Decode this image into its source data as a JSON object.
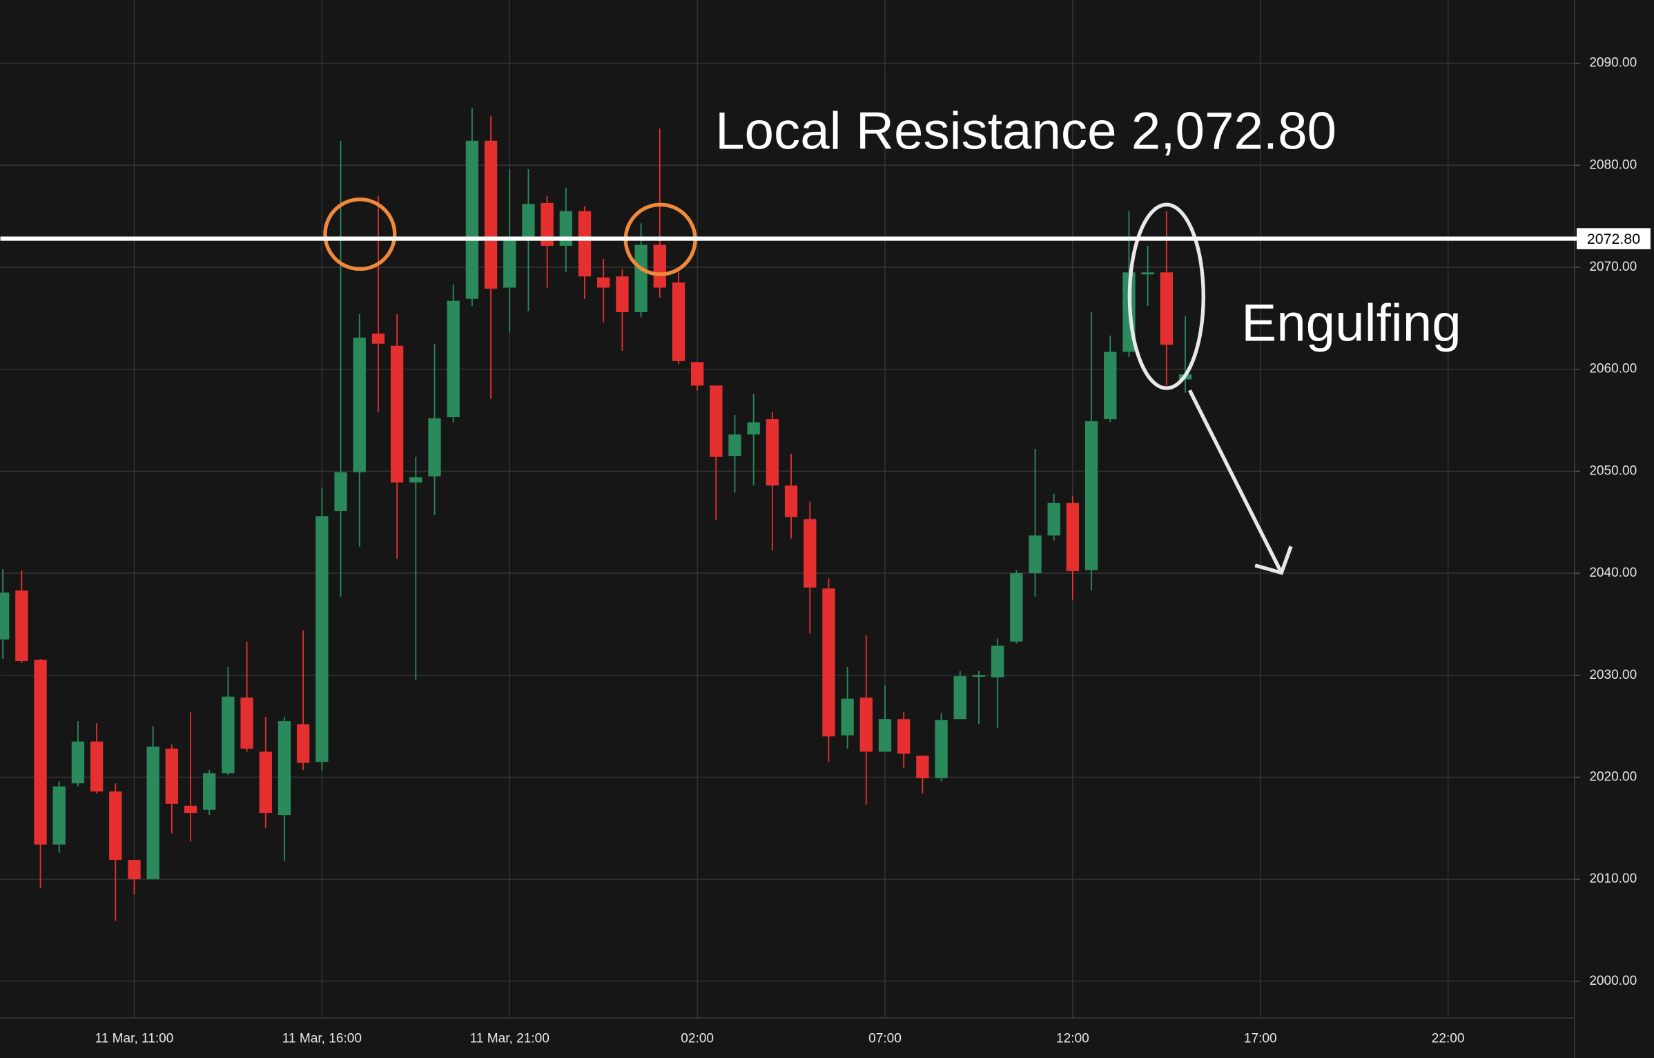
{
  "chart_data": {
    "type": "candlestick",
    "categories": [
      null,
      null,
      null,
      null,
      null,
      null,
      null,
      "11 Mar, 11:00",
      null,
      null,
      null,
      null,
      null,
      null,
      null,
      null,
      null,
      "11 Mar, 16:00",
      null,
      null,
      null,
      null,
      null,
      null,
      null,
      null,
      null,
      "11 Mar, 21:00",
      null,
      null,
      null,
      null,
      null,
      null,
      null,
      null,
      null,
      "02:00",
      null,
      null,
      null,
      null,
      null,
      null,
      null,
      null,
      null,
      "07:00",
      null,
      null,
      null,
      null,
      null,
      null,
      null,
      null,
      null,
      "12:00",
      null,
      null,
      null,
      null,
      null,
      null,
      null,
      null,
      null,
      "17:00",
      null,
      null,
      null,
      null,
      null,
      null,
      null,
      null,
      null,
      "22:00",
      null,
      null,
      null,
      null,
      null,
      null
    ],
    "open": [
      2033.5,
      2038.3,
      2031.5,
      2013.4,
      2019.4,
      2023.5,
      2018.6,
      2011.9,
      2010.0,
      2022.8,
      2017.2,
      2016.8,
      2020.4,
      2027.8,
      2022.5,
      2016.3,
      2025.2,
      2021.5,
      2046.1,
      2049.9,
      2063.5,
      2062.3,
      2048.9,
      2049.5,
      2055.3,
      2066.9,
      2082.4,
      2068.0,
      2072.6,
      2076.3,
      2072.1,
      2075.5,
      2069.0,
      2069.1,
      2065.6,
      2072.2,
      2068.5,
      2060.7,
      2058.4,
      2051.5,
      2053.6,
      2055.1,
      2048.6,
      2045.3,
      2038.5,
      2024.1,
      2027.8,
      2022.5,
      2025.7,
      2022.1,
      2019.9,
      2025.7,
      2029.9,
      2029.8,
      2033.3,
      2040.0,
      2043.7,
      2046.9,
      2040.3,
      2055.1,
      2061.7,
      2069.3,
      2069.5,
      2059.0,
      null,
      null,
      null,
      null,
      null,
      null,
      null,
      null,
      null,
      null,
      null,
      null,
      null,
      null,
      null,
      null,
      null,
      null,
      null,
      null
    ],
    "high": [
      2040.4,
      2040.3,
      2031.6,
      2019.6,
      2025.5,
      2025.3,
      2019.4,
      2011.9,
      2025.0,
      2023.2,
      2026.4,
      2020.7,
      2030.8,
      2033.3,
      2025.9,
      2025.9,
      2034.4,
      2048.4,
      2082.4,
      2065.4,
      2077.0,
      2065.4,
      2051.4,
      2062.5,
      2068.3,
      2085.6,
      2084.8,
      2079.6,
      2079.6,
      2077.0,
      2077.8,
      2076.0,
      2070.8,
      2069.8,
      2074.3,
      2083.6,
      2069.8,
      2060.7,
      2058.4,
      2055.5,
      2057.6,
      2055.8,
      2051.7,
      2047.0,
      2039.5,
      2030.8,
      2033.9,
      2029.0,
      2026.4,
      2022.1,
      2026.3,
      2030.4,
      2030.4,
      2033.6,
      2040.3,
      2052.2,
      2047.8,
      2047.6,
      2065.6,
      2063.3,
      2075.5,
      2072.1,
      2075.5,
      2065.2,
      null,
      null,
      null,
      null,
      null,
      null,
      null,
      null,
      null,
      null,
      null,
      null,
      null,
      null,
      null,
      null,
      null,
      null,
      null,
      null
    ],
    "low": [
      2031.6,
      2031.2,
      2009.1,
      2012.6,
      2019.1,
      2018.4,
      2005.9,
      2008.5,
      2010.0,
      2014.5,
      2013.7,
      2016.3,
      2020.2,
      2022.5,
      2015.0,
      2011.8,
      2020.7,
      2020.7,
      2037.7,
      2042.6,
      2055.8,
      2041.4,
      2029.5,
      2045.7,
      2054.8,
      2066.2,
      2057.1,
      2063.6,
      2065.7,
      2068.0,
      2069.5,
      2066.9,
      2064.6,
      2061.8,
      2065.1,
      2067.0,
      2060.5,
      2057.9,
      2045.2,
      2047.9,
      2048.6,
      2042.2,
      2043.4,
      2034.1,
      2021.5,
      2022.8,
      2017.3,
      2022.5,
      2020.9,
      2018.4,
      2019.6,
      2025.7,
      2025.2,
      2024.8,
      2033.1,
      2037.7,
      2043.2,
      2037.4,
      2038.3,
      2054.8,
      2061.2,
      2066.2,
      2058.4,
      2057.7,
      null,
      null,
      null,
      null,
      null,
      null,
      null,
      null,
      null,
      null,
      null,
      null,
      null,
      null,
      null,
      null,
      null,
      null,
      null,
      null
    ],
    "close": [
      2038.1,
      2031.4,
      2013.4,
      2019.1,
      2023.5,
      2018.6,
      2011.9,
      2010.0,
      2023.0,
      2017.4,
      2016.5,
      2020.4,
      2027.9,
      2022.8,
      2016.5,
      2025.5,
      2021.4,
      2045.6,
      2049.9,
      2063.1,
      2062.5,
      2048.9,
      2049.4,
      2055.2,
      2066.7,
      2082.4,
      2067.9,
      2072.6,
      2076.2,
      2072.1,
      2075.5,
      2069.1,
      2068.0,
      2065.6,
      2072.2,
      2068.0,
      2060.8,
      2058.4,
      2051.4,
      2053.6,
      2054.8,
      2048.6,
      2045.5,
      2038.6,
      2024.0,
      2027.7,
      2022.5,
      2025.7,
      2022.3,
      2019.9,
      2025.6,
      2029.9,
      2030.0,
      2032.9,
      2040.0,
      2043.7,
      2046.9,
      2040.2,
      2054.9,
      2061.7,
      2069.5,
      2069.5,
      2062.4,
      2059.5,
      null,
      null,
      null,
      null,
      null,
      null,
      null,
      null,
      null,
      null,
      null,
      null,
      null,
      null,
      null,
      null,
      null,
      null,
      null,
      null
    ],
    "up_color": "#2a8a5c",
    "down_color": "#e5302f",
    "ylim": [
      1996.4,
      2096.2
    ],
    "yticks": [
      {
        "value": 2000,
        "label": "2000.00"
      },
      {
        "value": 2010,
        "label": "2010.00"
      },
      {
        "value": 2020,
        "label": "2020.00"
      },
      {
        "value": 2030,
        "label": "2030.00"
      },
      {
        "value": 2040,
        "label": "2040.00"
      },
      {
        "value": 2050,
        "label": "2050.00"
      },
      {
        "value": 2060,
        "label": "2060.00"
      },
      {
        "value": 2070,
        "label": "2070.00"
      },
      {
        "value": 2080,
        "label": "2080.00"
      },
      {
        "value": 2090,
        "label": "2090.00"
      }
    ],
    "grid": true,
    "resistance": {
      "value": 2072.8,
      "label": "2072.80"
    },
    "annotations": [
      "Local Resistance 2,072.80",
      "Engulfing"
    ]
  }
}
